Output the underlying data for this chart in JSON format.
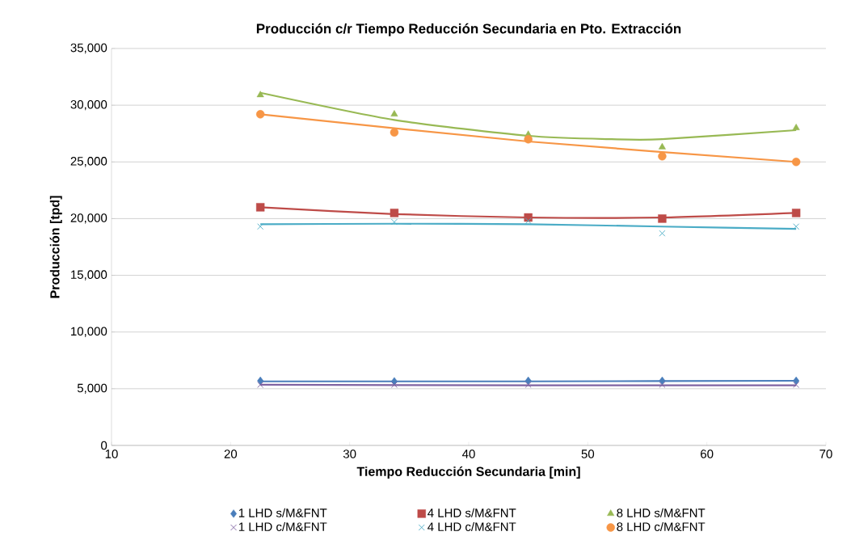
{
  "chart_data": {
    "type": "scatter",
    "title": "Producción c/r Tiempo Reducción Secundaria en Pto. Extracción",
    "xlabel": "Tiempo Reducción Secundaria [min]",
    "ylabel": "Producción [tpd]",
    "x": [
      22.5,
      33.75,
      45,
      56.25,
      67.5
    ],
    "xlim": [
      10,
      70
    ],
    "xticks": [
      10,
      20,
      30,
      40,
      50,
      60,
      70
    ],
    "ylim": [
      0,
      35000
    ],
    "yticks": [
      0,
      {
        "value": 5000,
        "label": "5,000"
      },
      {
        "value": 10000,
        "label": "10,000"
      },
      {
        "value": 15000,
        "label": "15,000"
      },
      {
        "value": 20000,
        "label": "20,000"
      },
      {
        "value": 25000,
        "label": "25,000"
      },
      {
        "value": 30000,
        "label": "30,000"
      },
      {
        "value": 35000,
        "label": "35,000"
      }
    ],
    "grid": "y",
    "legend": "bottom",
    "series": [
      {
        "name": "1 LHD s/M&FNT",
        "color": "#4a7ebb",
        "marker": "diamond",
        "values": [
          5700,
          5650,
          5700,
          5700,
          5700
        ]
      },
      {
        "name": "4 LHD s/M&FNT",
        "color": "#be4b48",
        "marker": "square",
        "values": [
          21000,
          20500,
          20100,
          20000,
          20500
        ]
      },
      {
        "name": "8 LHD s/M&FNT",
        "color": "#98b954",
        "marker": "triangle",
        "values": [
          30900,
          29200,
          27400,
          26300,
          28000
        ]
      },
      {
        "name": "1 LHD c/M&FNT",
        "color": "#8064a2",
        "marker": "cross",
        "values": [
          5350,
          5350,
          5350,
          5350,
          5350
        ]
      },
      {
        "name": "4 LHD c/M&FNT",
        "color": "#4bacc6",
        "marker": "cross",
        "values": [
          19300,
          19700,
          19800,
          18700,
          19300
        ]
      },
      {
        "name": "8 LHD c/M&FNT",
        "color": "#f79646",
        "marker": "circle",
        "values": [
          29200,
          27600,
          27000,
          25500,
          25000
        ]
      },
      {
        "type": "line",
        "color": "#4a7ebb",
        "marker": "none",
        "x": [
          22.5,
          45,
          67.5
        ],
        "values": [
          5650,
          5650,
          5700
        ]
      },
      {
        "type": "line",
        "color": "#be4b48",
        "marker": "none",
        "x": [
          22.5,
          33.75,
          45,
          56.25,
          67.5
        ],
        "values": [
          21000,
          20400,
          20100,
          20100,
          20500
        ]
      },
      {
        "type": "line",
        "color": "#98b954",
        "marker": "none",
        "x": [
          22.5,
          33.75,
          45,
          52,
          56.25,
          67.5
        ],
        "values": [
          31100,
          28700,
          27300,
          27000,
          27000,
          27800
        ]
      },
      {
        "type": "line",
        "color": "#8064a2",
        "marker": "none",
        "x": [
          22.5,
          45,
          67.5
        ],
        "values": [
          5350,
          5300,
          5300
        ]
      },
      {
        "type": "line",
        "color": "#4bacc6",
        "marker": "none",
        "x": [
          22.5,
          33.75,
          45,
          56.25,
          67.5
        ],
        "values": [
          19500,
          19550,
          19500,
          19300,
          19100
        ]
      },
      {
        "type": "line",
        "color": "#f79646",
        "marker": "none",
        "x": [
          22.5,
          45,
          67.5
        ],
        "values": [
          29200,
          26800,
          25000
        ]
      }
    ]
  }
}
